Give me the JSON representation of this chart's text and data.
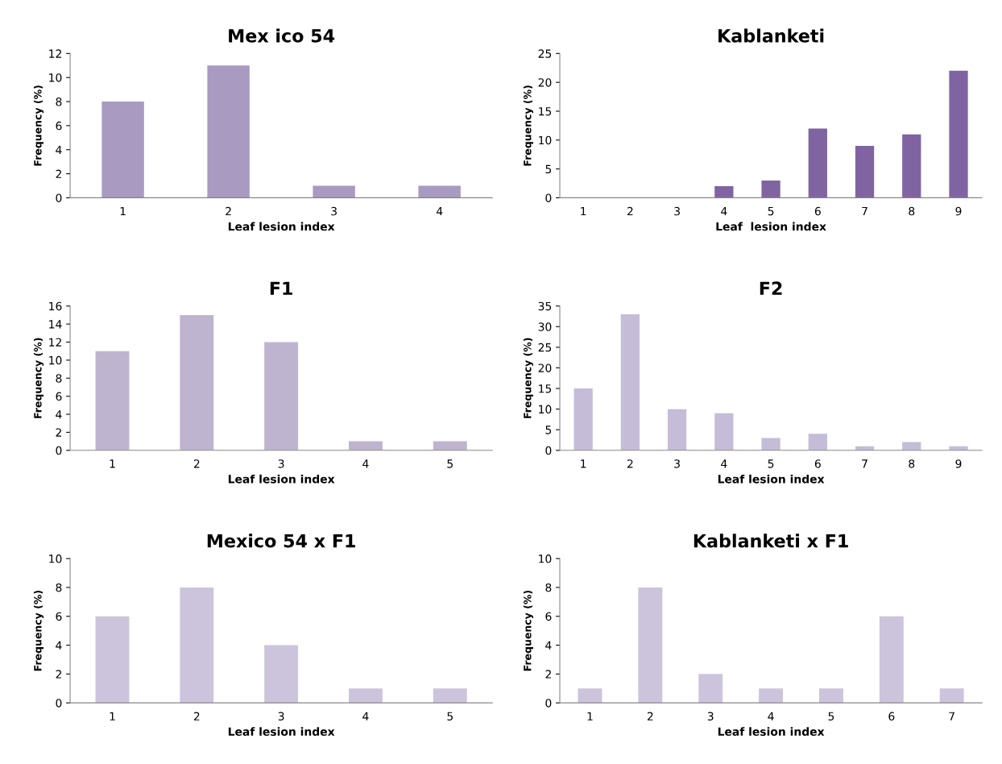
{
  "chart_data": [
    {
      "type": "bar",
      "title": "Mex ico 54",
      "xlabel": "Leaf lesion index",
      "ylabel": "Frequency (%)",
      "categories": [
        "1",
        "2",
        "3",
        "4"
      ],
      "values": [
        8,
        11,
        1,
        1
      ],
      "color": "#a89ac0",
      "ylim": [
        0,
        12
      ],
      "yticks": [
        0,
        2,
        4,
        6,
        8,
        10,
        12
      ]
    },
    {
      "type": "bar",
      "title": "Kablanketi",
      "xlabel": "Leaf  lesion index",
      "ylabel": "Frequency (%)",
      "categories": [
        "1",
        "2",
        "3",
        "4",
        "5",
        "6",
        "7",
        "8",
        "9"
      ],
      "values": [
        0,
        0,
        0,
        2,
        3,
        12,
        9,
        11,
        22
      ],
      "color": "#8064a2",
      "ylim": [
        0,
        25
      ],
      "yticks": [
        0,
        5,
        10,
        15,
        20,
        25
      ]
    },
    {
      "type": "bar",
      "title": "F1",
      "xlabel": "Leaf lesion index",
      "ylabel": "Frequency (%)",
      "categories": [
        "1",
        "2",
        "3",
        "4",
        "5"
      ],
      "values": [
        11,
        15,
        12,
        1,
        1
      ],
      "color": "#bfb4cf",
      "ylim": [
        0,
        16
      ],
      "yticks": [
        0,
        2,
        4,
        6,
        8,
        10,
        12,
        14,
        16
      ]
    },
    {
      "type": "bar",
      "title": "F2",
      "xlabel": "Leaf lesion index",
      "ylabel": "Frequency (%)",
      "categories": [
        "1",
        "2",
        "3",
        "4",
        "5",
        "6",
        "7",
        "8",
        "9"
      ],
      "values": [
        15,
        33,
        10,
        9,
        3,
        4,
        1,
        2,
        1
      ],
      "color": "#c5bcd8",
      "ylim": [
        0,
        35
      ],
      "yticks": [
        0,
        5,
        10,
        15,
        20,
        25,
        30,
        35
      ]
    },
    {
      "type": "bar",
      "title": "Mexico 54 x F1",
      "xlabel": "Leaf lesion index",
      "ylabel": "Frequency (%)",
      "categories": [
        "1",
        "2",
        "3",
        "4",
        "5"
      ],
      "values": [
        6,
        8,
        4,
        1,
        1
      ],
      "color": "#ccc4dc",
      "ylim": [
        0,
        10
      ],
      "yticks": [
        0,
        2,
        4,
        6,
        8,
        10
      ]
    },
    {
      "type": "bar",
      "title": "Kablanketi x F1",
      "xlabel": "Leaf lesion index",
      "ylabel": "Frequency (%)",
      "categories": [
        "1",
        "2",
        "3",
        "4",
        "5",
        "6",
        "7"
      ],
      "values": [
        1,
        8,
        2,
        1,
        1,
        6,
        1
      ],
      "color": "#ccc4dc",
      "ylim": [
        0,
        10
      ],
      "yticks": [
        0,
        2,
        4,
        6,
        8,
        10
      ]
    }
  ]
}
